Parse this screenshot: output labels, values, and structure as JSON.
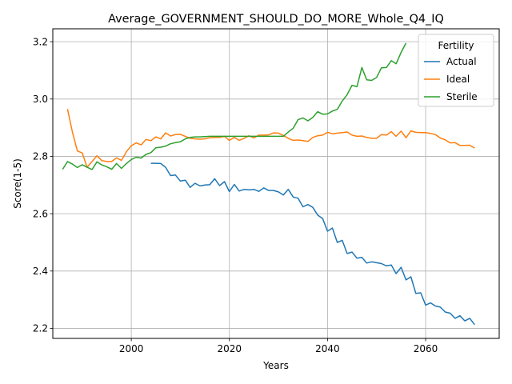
{
  "chart_data": {
    "type": "line",
    "title": "Average_GOVERNMENT_SHOULD_DO_MORE_Whole_Q4_IQ",
    "xlabel": "Years",
    "ylabel": "Score(1-5)",
    "xlim": [
      1984,
      2075
    ],
    "ylim": [
      2.165,
      3.245
    ],
    "xticks": [
      2000,
      2020,
      2040,
      2060
    ],
    "yticks": [
      2.2,
      2.4,
      2.6,
      2.8,
      3.0,
      3.2
    ],
    "grid": true,
    "legend": {
      "title": "Fertility",
      "placement": "top-right"
    },
    "series": [
      {
        "name": "Actual",
        "color": "#1f77b4",
        "x": [
          2004,
          2005,
          2006,
          2007,
          2008,
          2009,
          2010,
          2011,
          2012,
          2013,
          2014,
          2015,
          2016,
          2017,
          2018,
          2019,
          2020,
          2021,
          2022,
          2023,
          2024,
          2025,
          2026,
          2027,
          2028,
          2029,
          2030,
          2031,
          2032,
          2033,
          2034,
          2035,
          2036,
          2037,
          2038,
          2039,
          2040,
          2041,
          2042,
          2043,
          2044,
          2045,
          2046,
          2047,
          2048,
          2049,
          2050,
          2051,
          2052,
          2053,
          2054,
          2055,
          2056,
          2057,
          2058,
          2059,
          2060,
          2061,
          2062,
          2063,
          2064,
          2065,
          2066,
          2067,
          2068,
          2069,
          2070
        ],
        "values": [
          2.776,
          2.776,
          2.775,
          2.762,
          2.733,
          2.735,
          2.714,
          2.717,
          2.692,
          2.706,
          2.697,
          2.7,
          2.701,
          2.722,
          2.698,
          2.712,
          2.677,
          2.702,
          2.679,
          2.685,
          2.683,
          2.685,
          2.678,
          2.69,
          2.681,
          2.681,
          2.676,
          2.665,
          2.685,
          2.658,
          2.654,
          2.624,
          2.632,
          2.622,
          2.595,
          2.583,
          2.539,
          2.55,
          2.5,
          2.507,
          2.461,
          2.466,
          2.445,
          2.448,
          2.428,
          2.432,
          2.429,
          2.426,
          2.418,
          2.421,
          2.391,
          2.413,
          2.369,
          2.38,
          2.322,
          2.324,
          2.281,
          2.289,
          2.278,
          2.274,
          2.257,
          2.253,
          2.235,
          2.244,
          2.226,
          2.235,
          2.213
        ]
      },
      {
        "name": "Ideal",
        "color": "#ff7f0e",
        "x": [
          1987,
          1988,
          1989,
          1990,
          1991,
          1992,
          1993,
          1994,
          1995,
          1996,
          1997,
          1998,
          1999,
          2000,
          2001,
          2002,
          2003,
          2004,
          2005,
          2006,
          2007,
          2008,
          2009,
          2010,
          2011,
          2012,
          2013,
          2014,
          2015,
          2016,
          2017,
          2018,
          2019,
          2020,
          2021,
          2022,
          2023,
          2024,
          2025,
          2026,
          2027,
          2028,
          2029,
          2030,
          2031,
          2032,
          2033,
          2034,
          2035,
          2036,
          2037,
          2038,
          2039,
          2040,
          2041,
          2042,
          2043,
          2044,
          2045,
          2046,
          2047,
          2048,
          2049,
          2050,
          2051,
          2052,
          2053,
          2054,
          2055,
          2056,
          2057,
          2058,
          2059,
          2060,
          2061,
          2062,
          2063,
          2064,
          2065,
          2066,
          2067,
          2068,
          2069,
          2070
        ],
        "values": [
          2.965,
          2.885,
          2.819,
          2.812,
          2.762,
          2.782,
          2.802,
          2.785,
          2.782,
          2.782,
          2.795,
          2.786,
          2.816,
          2.837,
          2.847,
          2.84,
          2.859,
          2.855,
          2.868,
          2.861,
          2.882,
          2.871,
          2.876,
          2.877,
          2.87,
          2.863,
          2.861,
          2.86,
          2.861,
          2.865,
          2.866,
          2.866,
          2.87,
          2.856,
          2.866,
          2.856,
          2.863,
          2.872,
          2.864,
          2.874,
          2.874,
          2.875,
          2.882,
          2.881,
          2.873,
          2.863,
          2.856,
          2.857,
          2.855,
          2.852,
          2.866,
          2.872,
          2.874,
          2.884,
          2.879,
          2.881,
          2.883,
          2.885,
          2.874,
          2.87,
          2.871,
          2.866,
          2.863,
          2.863,
          2.876,
          2.874,
          2.886,
          2.87,
          2.888,
          2.865,
          2.889,
          2.884,
          2.883,
          2.883,
          2.88,
          2.876,
          2.864,
          2.858,
          2.847,
          2.848,
          2.838,
          2.838,
          2.839,
          2.829
        ]
      },
      {
        "name": "Sterile",
        "color": "#2ca02c",
        "x": [
          1986,
          1987,
          1988,
          1989,
          1990,
          1991,
          1992,
          1993,
          1994,
          1995,
          1996,
          1997,
          1998,
          1999,
          2000,
          2001,
          2002,
          2003,
          2004,
          2005,
          2006,
          2007,
          2008,
          2009,
          2010,
          2011,
          2012,
          2013,
          2014,
          2015,
          2016,
          2017,
          2018,
          2019,
          2020,
          2021,
          2022,
          2023,
          2024,
          2025,
          2026,
          2027,
          2028,
          2029,
          2030,
          2031,
          2032,
          2033,
          2034,
          2035,
          2036,
          2037,
          2038,
          2039,
          2040,
          2041,
          2042,
          2043,
          2044,
          2045,
          2046,
          2047,
          2048,
          2049,
          2050,
          2051,
          2052,
          2053,
          2054,
          2055,
          2056
        ],
        "values": [
          2.755,
          2.782,
          2.773,
          2.761,
          2.771,
          2.762,
          2.754,
          2.781,
          2.77,
          2.764,
          2.755,
          2.775,
          2.758,
          2.775,
          2.789,
          2.797,
          2.794,
          2.807,
          2.813,
          2.83,
          2.832,
          2.836,
          2.844,
          2.848,
          2.851,
          2.861,
          2.866,
          2.868,
          2.868,
          2.869,
          2.87,
          2.87,
          2.87,
          2.87,
          2.87,
          2.87,
          2.87,
          2.87,
          2.87,
          2.87,
          2.87,
          2.87,
          2.87,
          2.87,
          2.87,
          2.87,
          2.885,
          2.898,
          2.928,
          2.934,
          2.924,
          2.936,
          2.956,
          2.947,
          2.948,
          2.958,
          2.964,
          2.993,
          3.015,
          3.048,
          3.043,
          3.11,
          3.067,
          3.065,
          3.075,
          3.109,
          3.11,
          3.134,
          3.123,
          3.163,
          3.195
        ]
      }
    ]
  }
}
